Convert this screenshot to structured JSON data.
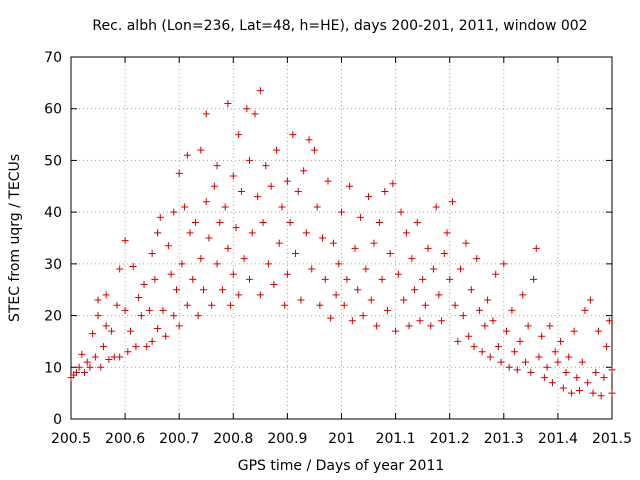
{
  "chart_data": {
    "type": "scatter",
    "title": "Rec. albh (Lon=236, Lat=48, h=HE), days 200-201, 2011, window 002",
    "xlabel": "GPS time / Days of year 2011",
    "ylabel": "STEC from uqrg / TECUs",
    "xlim": [
      200.5,
      201.5
    ],
    "ylim": [
      0,
      70
    ],
    "xticks": [
      "200.5",
      "200.6",
      "200.7",
      "200.8",
      "200.9",
      "201",
      "201.1",
      "201.2",
      "201.3",
      "201.4",
      "201.5"
    ],
    "yticks": [
      "0",
      "10",
      "20",
      "30",
      "40",
      "50",
      "60",
      "70"
    ],
    "grid": true,
    "marker": "plus",
    "color": "#d00000",
    "points": [
      [
        200.5,
        8
      ],
      [
        200.505,
        8.5
      ],
      [
        200.51,
        9
      ],
      [
        200.515,
        10
      ],
      [
        200.52,
        12.5
      ],
      [
        200.525,
        9
      ],
      [
        200.53,
        11
      ],
      [
        200.535,
        10
      ],
      [
        200.54,
        16.5
      ],
      [
        200.545,
        12
      ],
      [
        200.55,
        23
      ],
      [
        200.55,
        20
      ],
      [
        200.555,
        10
      ],
      [
        200.56,
        14
      ],
      [
        200.565,
        24
      ],
      [
        200.565,
        18
      ],
      [
        200.57,
        11.5
      ],
      [
        200.575,
        17
      ],
      [
        200.58,
        12
      ],
      [
        200.585,
        22
      ],
      [
        200.59,
        29
      ],
      [
        200.59,
        12
      ],
      [
        200.6,
        34.5
      ],
      [
        200.6,
        21
      ],
      [
        200.605,
        13
      ],
      [
        200.61,
        17
      ],
      [
        200.615,
        29.5
      ],
      [
        200.62,
        14
      ],
      [
        200.625,
        23.5
      ],
      [
        200.63,
        20
      ],
      [
        200.635,
        26
      ],
      [
        200.64,
        14
      ],
      [
        200.645,
        21
      ],
      [
        200.65,
        32
      ],
      [
        200.65,
        15
      ],
      [
        200.655,
        27
      ],
      [
        200.66,
        36
      ],
      [
        200.66,
        17.5
      ],
      [
        200.665,
        39
      ],
      [
        200.67,
        21
      ],
      [
        200.675,
        16
      ],
      [
        200.68,
        33.5
      ],
      [
        200.685,
        28
      ],
      [
        200.69,
        40
      ],
      [
        200.69,
        20
      ],
      [
        200.695,
        25
      ],
      [
        200.7,
        47.5
      ],
      [
        200.7,
        18
      ],
      [
        200.705,
        30
      ],
      [
        200.71,
        41
      ],
      [
        200.715,
        51
      ],
      [
        200.715,
        22
      ],
      [
        200.72,
        36
      ],
      [
        200.725,
        27
      ],
      [
        200.73,
        38
      ],
      [
        200.735,
        20
      ],
      [
        200.74,
        52
      ],
      [
        200.74,
        31
      ],
      [
        200.745,
        25
      ],
      [
        200.75,
        59
      ],
      [
        200.75,
        42
      ],
      [
        200.755,
        35
      ],
      [
        200.76,
        22
      ],
      [
        200.765,
        45
      ],
      [
        200.77,
        49
      ],
      [
        200.77,
        30
      ],
      [
        200.775,
        38
      ],
      [
        200.78,
        25
      ],
      [
        200.785,
        41
      ],
      [
        200.79,
        61
      ],
      [
        200.79,
        33
      ],
      [
        200.795,
        22
      ],
      [
        200.8,
        47
      ],
      [
        200.8,
        28
      ],
      [
        200.805,
        37
      ],
      [
        200.81,
        55
      ],
      [
        200.81,
        24
      ],
      [
        200.815,
        44
      ],
      [
        200.82,
        31
      ],
      [
        200.825,
        60
      ],
      [
        200.83,
        50
      ],
      [
        200.83,
        27
      ],
      [
        200.835,
        36
      ],
      [
        200.84,
        59
      ],
      [
        200.845,
        43
      ],
      [
        200.85,
        63.5
      ],
      [
        200.85,
        24
      ],
      [
        200.855,
        38
      ],
      [
        200.86,
        49
      ],
      [
        200.865,
        30
      ],
      [
        200.87,
        45
      ],
      [
        200.875,
        26
      ],
      [
        200.88,
        52
      ],
      [
        200.885,
        34
      ],
      [
        200.89,
        41
      ],
      [
        200.895,
        22
      ],
      [
        200.9,
        46
      ],
      [
        200.9,
        28
      ],
      [
        200.905,
        38
      ],
      [
        200.91,
        55
      ],
      [
        200.915,
        32
      ],
      [
        200.92,
        44
      ],
      [
        200.925,
        23
      ],
      [
        200.93,
        48
      ],
      [
        200.935,
        36
      ],
      [
        200.94,
        54
      ],
      [
        200.945,
        29
      ],
      [
        200.95,
        52
      ],
      [
        200.955,
        41
      ],
      [
        200.96,
        22
      ],
      [
        200.965,
        35
      ],
      [
        200.97,
        27
      ],
      [
        200.975,
        46
      ],
      [
        200.98,
        19.5
      ],
      [
        200.985,
        34
      ],
      [
        200.99,
        24
      ],
      [
        200.995,
        30
      ],
      [
        201.0,
        40
      ],
      [
        201.005,
        22
      ],
      [
        201.01,
        27
      ],
      [
        201.015,
        45
      ],
      [
        201.02,
        19
      ],
      [
        201.025,
        33
      ],
      [
        201.03,
        25
      ],
      [
        201.035,
        39
      ],
      [
        201.04,
        20
      ],
      [
        201.045,
        29
      ],
      [
        201.05,
        43
      ],
      [
        201.055,
        23
      ],
      [
        201.06,
        34
      ],
      [
        201.065,
        18
      ],
      [
        201.07,
        38
      ],
      [
        201.075,
        27
      ],
      [
        201.08,
        44
      ],
      [
        201.085,
        21
      ],
      [
        201.09,
        32
      ],
      [
        201.095,
        45.5
      ],
      [
        201.1,
        17
      ],
      [
        201.105,
        28
      ],
      [
        201.11,
        40
      ],
      [
        201.115,
        23
      ],
      [
        201.12,
        36
      ],
      [
        201.125,
        18
      ],
      [
        201.13,
        31
      ],
      [
        201.135,
        25
      ],
      [
        201.14,
        38
      ],
      [
        201.145,
        19
      ],
      [
        201.15,
        27
      ],
      [
        201.155,
        22
      ],
      [
        201.16,
        33
      ],
      [
        201.165,
        18
      ],
      [
        201.17,
        29
      ],
      [
        201.175,
        41
      ],
      [
        201.18,
        24
      ],
      [
        201.185,
        19
      ],
      [
        201.19,
        32
      ],
      [
        201.195,
        36
      ],
      [
        201.2,
        27
      ],
      [
        201.205,
        42
      ],
      [
        201.21,
        22
      ],
      [
        201.215,
        15
      ],
      [
        201.22,
        29
      ],
      [
        201.225,
        20
      ],
      [
        201.23,
        34
      ],
      [
        201.235,
        16
      ],
      [
        201.24,
        25
      ],
      [
        201.245,
        14
      ],
      [
        201.25,
        31
      ],
      [
        201.255,
        21
      ],
      [
        201.26,
        13
      ],
      [
        201.265,
        18
      ],
      [
        201.27,
        23
      ],
      [
        201.275,
        12
      ],
      [
        201.28,
        19
      ],
      [
        201.285,
        28
      ],
      [
        201.29,
        14
      ],
      [
        201.295,
        11
      ],
      [
        201.3,
        30
      ],
      [
        201.305,
        17
      ],
      [
        201.31,
        10
      ],
      [
        201.315,
        21
      ],
      [
        201.32,
        13
      ],
      [
        201.325,
        9.5
      ],
      [
        201.33,
        15
      ],
      [
        201.335,
        24
      ],
      [
        201.34,
        11
      ],
      [
        201.345,
        18
      ],
      [
        201.35,
        9
      ],
      [
        201.355,
        27
      ],
      [
        201.36,
        33
      ],
      [
        201.365,
        12
      ],
      [
        201.37,
        16
      ],
      [
        201.375,
        8
      ],
      [
        201.38,
        10
      ],
      [
        201.385,
        18
      ],
      [
        201.39,
        7
      ],
      [
        201.395,
        13
      ],
      [
        201.4,
        11
      ],
      [
        201.405,
        15
      ],
      [
        201.41,
        6
      ],
      [
        201.415,
        9
      ],
      [
        201.42,
        12
      ],
      [
        201.425,
        5
      ],
      [
        201.43,
        17
      ],
      [
        201.435,
        8
      ],
      [
        201.44,
        5.5
      ],
      [
        201.445,
        11
      ],
      [
        201.45,
        21
      ],
      [
        201.455,
        7
      ],
      [
        201.46,
        23
      ],
      [
        201.465,
        5
      ],
      [
        201.47,
        9
      ],
      [
        201.475,
        17
      ],
      [
        201.48,
        4.5
      ],
      [
        201.485,
        8
      ],
      [
        201.49,
        14
      ],
      [
        201.495,
        19
      ],
      [
        201.5,
        5
      ],
      [
        201.5,
        9.5
      ]
    ]
  }
}
